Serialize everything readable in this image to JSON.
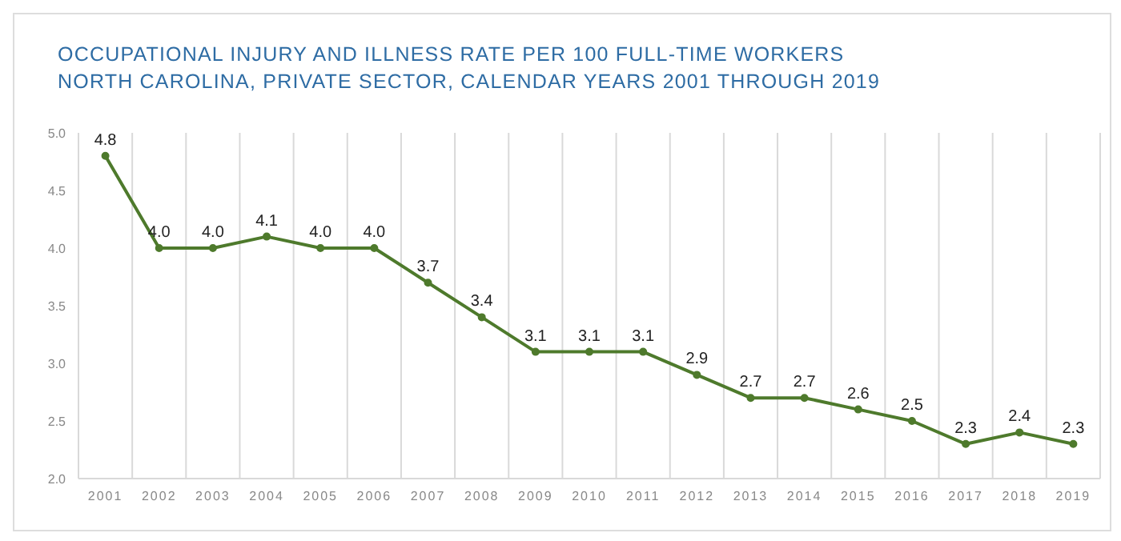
{
  "chart_data": {
    "type": "line",
    "title": "OCCUPATIONAL INJURY AND ILLNESS RATE PER 100 FULL-TIME WORKERS",
    "subtitle": "NORTH CAROLINA, PRIVATE SECTOR, CALENDAR YEARS 2001 THROUGH 2019",
    "categories": [
      "2001",
      "2002",
      "2003",
      "2004",
      "2005",
      "2006",
      "2007",
      "2008",
      "2009",
      "2010",
      "2011",
      "2012",
      "2013",
      "2014",
      "2015",
      "2016",
      "2017",
      "2018",
      "2019"
    ],
    "series": [
      {
        "color": "#4e7a2c",
        "values": [
          4.8,
          4.0,
          4.0,
          4.1,
          4.0,
          4.0,
          3.7,
          3.4,
          3.1,
          3.1,
          3.1,
          2.9,
          2.7,
          2.7,
          2.6,
          2.5,
          2.3,
          2.4,
          2.3
        ],
        "value_labels": [
          "4.8",
          "4.0",
          "4.0",
          "4.1",
          "4.0",
          "4.0",
          "3.7",
          "3.4",
          "3.1",
          "3.1",
          "3.1",
          "2.9",
          "2.7",
          "2.7",
          "2.6",
          "2.5",
          "2.3",
          "2.4",
          "2.3"
        ]
      }
    ],
    "ylim": [
      2.0,
      5.0
    ],
    "yticks": [
      {
        "value": 2,
        "label": "2.0"
      },
      {
        "value": 2.5,
        "label": "2.5"
      },
      {
        "value": 3,
        "label": "3.0"
      },
      {
        "value": 3.5,
        "label": "3.5"
      },
      {
        "value": 4,
        "label": "4.0"
      },
      {
        "value": 4.5,
        "label": "4.5"
      },
      {
        "value": 5,
        "label": "5.0"
      }
    ],
    "grid": "x",
    "marker": "circle",
    "line_style": "solid",
    "legend": false
  }
}
